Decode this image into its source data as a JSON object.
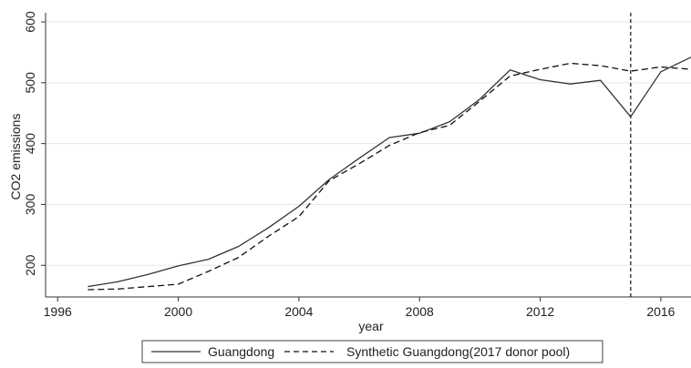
{
  "chart_data": {
    "type": "line",
    "xlabel": "year",
    "ylabel": "CO2 emissions",
    "xlim": [
      1995.6,
      2017.0
    ],
    "ylim": [
      148,
      615
    ],
    "x_ticks": [
      1996,
      2000,
      2004,
      2008,
      2012,
      2016
    ],
    "y_ticks": [
      200,
      300,
      400,
      500,
      600
    ],
    "grid": true,
    "legend_position": "bottom",
    "reference_line": {
      "x": 2015,
      "style": "dashed"
    },
    "series": [
      {
        "name": "Guangdong",
        "style": "solid",
        "color": "#333333",
        "x": [
          1997,
          1998,
          1999,
          2000,
          2001,
          2002,
          2003,
          2004,
          2005,
          2006,
          2007,
          2008,
          2009,
          2010,
          2011,
          2012,
          2013,
          2014,
          2015,
          2016,
          2017
        ],
        "values": [
          165,
          173,
          185,
          199,
          210,
          231,
          262,
          297,
          341,
          376,
          410,
          417,
          436,
          473,
          521,
          505,
          498,
          504,
          444,
          518,
          542
        ]
      },
      {
        "name": "Synthetic Guangdong(2017 donor pool)",
        "style": "dashed",
        "color": "#111111",
        "x": [
          1997,
          1998,
          1999,
          2000,
          2001,
          2002,
          2003,
          2004,
          2005,
          2006,
          2007,
          2008,
          2009,
          2010,
          2011,
          2012,
          2013,
          2014,
          2015,
          2016,
          2017
        ],
        "values": [
          160,
          161,
          165,
          169,
          190,
          213,
          248,
          280,
          339,
          367,
          397,
          418,
          430,
          470,
          511,
          522,
          532,
          528,
          519,
          526,
          522
        ]
      }
    ]
  }
}
